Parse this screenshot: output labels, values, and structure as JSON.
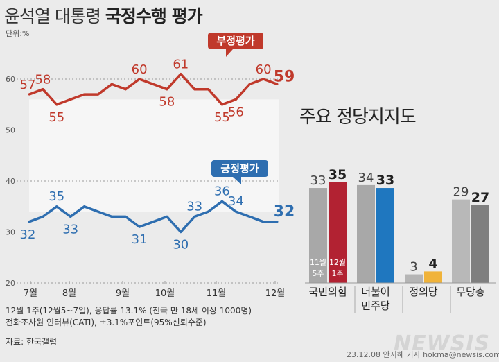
{
  "title_light": "윤석열 대통령",
  "title_bold": "국정수행 평가",
  "unit_label": "단위:%",
  "chart_data": [
    {
      "type": "line",
      "y_ticks": [
        60,
        50,
        40,
        30,
        20
      ],
      "ylim": [
        20,
        60
      ],
      "month_labels": [
        "7월",
        "8월",
        "9월",
        "10월",
        "11월",
        "12월"
      ],
      "series": [
        {
          "name": "부정평가",
          "color": "#c0392b",
          "values": [
            57,
            58,
            55,
            56,
            57,
            57,
            59,
            58,
            60,
            59,
            58,
            61,
            58,
            58,
            55,
            56,
            59,
            60,
            59
          ],
          "labeled": [
            [
              0,
              "57"
            ],
            [
              1,
              "58"
            ],
            [
              2,
              "55"
            ],
            [
              8,
              "60"
            ],
            [
              10,
              "58"
            ],
            [
              11,
              "61"
            ],
            [
              14,
              "55"
            ],
            [
              15,
              "56"
            ],
            [
              17,
              "60"
            ],
            [
              18,
              "59"
            ]
          ]
        },
        {
          "name": "긍정평가",
          "color": "#2e6eb0",
          "values": [
            32,
            33,
            35,
            33,
            35,
            34,
            33,
            33,
            31,
            32,
            33,
            30,
            33,
            34,
            36,
            34,
            33,
            32,
            32
          ],
          "labeled": [
            [
              0,
              "32"
            ],
            [
              2,
              "35"
            ],
            [
              3,
              "33"
            ],
            [
              8,
              "31"
            ],
            [
              11,
              "30"
            ],
            [
              12,
              "33"
            ],
            [
              14,
              "36"
            ],
            [
              15,
              "34"
            ],
            [
              18,
              "32"
            ]
          ]
        }
      ]
    },
    {
      "type": "bar",
      "title": "주요 정당지지도",
      "categories": [
        "국민의힘",
        "더불어\n민주당",
        "정의당",
        "무당층"
      ],
      "series": [
        {
          "name": "11월 5주",
          "values": [
            33,
            34,
            3,
            29
          ],
          "colors": [
            "#a8a8a8",
            "#a8a8a8",
            "#b5b5b5",
            "#b8b8b8"
          ]
        },
        {
          "name": "12월 1주",
          "values": [
            35,
            33,
            4,
            27
          ],
          "colors": [
            "#b22232",
            "#1f77bf",
            "#f0b33a",
            "#7f7f7f"
          ]
        }
      ],
      "in_bar_labels": [
        [
          "11월",
          "5주"
        ],
        [
          "12월",
          "1주"
        ]
      ]
    }
  ],
  "footnotes": [
    "12월 1주(12월5~7일), 응답률 13.1% (전국 만 18세 이상 1000명)",
    "전화조사원 인터뷰(CATI), ±3.1%포인트(95%신뢰수준)"
  ],
  "source": "자료: 한국갤럽",
  "logo": "NEWSIS",
  "credit": "23.12.08 안지혜 기자 hokma@newsis.com"
}
